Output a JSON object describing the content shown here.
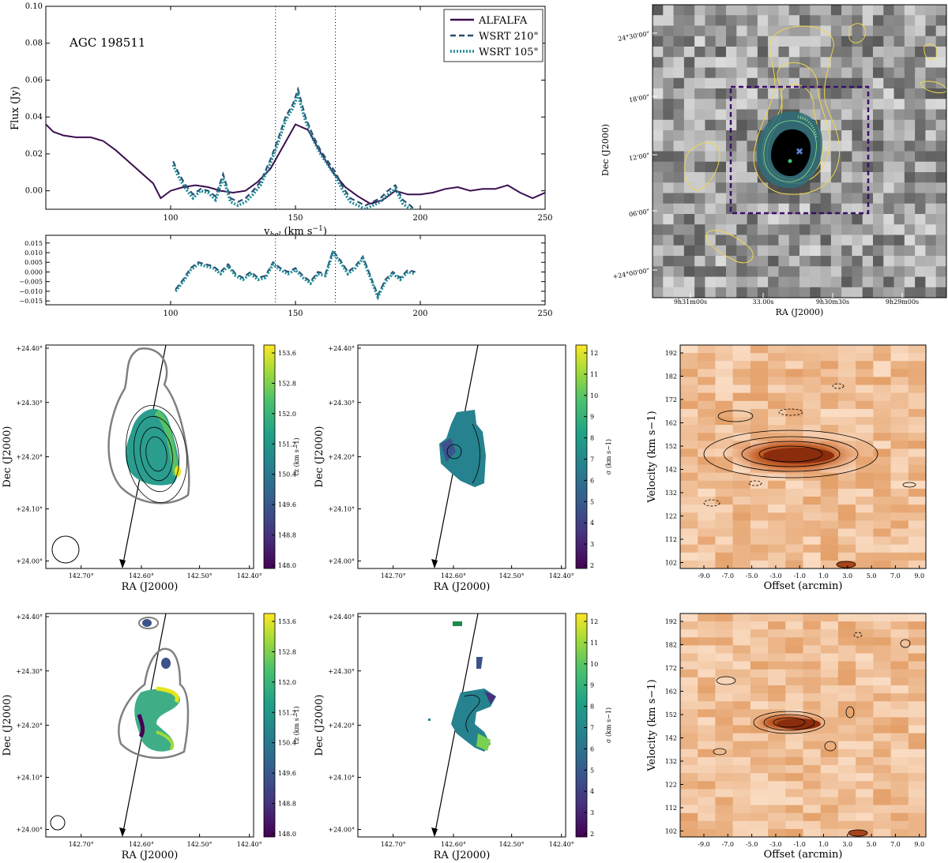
{
  "chart_data": [
    {
      "type": "line",
      "id": "spectrum",
      "annotation": "AGC 198511",
      "xlabel": "v_hel (km s^-1)",
      "xlabel_main": "v",
      "xlabel_sub": "hel",
      "xlabel_unit": "(km s",
      "xlabel_exp": "−1",
      "xlabel_close": ")",
      "ylabel": "Flux (Jy)",
      "xlim": [
        50,
        250
      ],
      "ylim": [
        -0.01,
        0.1
      ],
      "xticks": [
        100,
        150,
        200,
        250
      ],
      "xtick_labels": [
        "100",
        "150",
        "200",
        "250"
      ],
      "yticks": [
        0.0,
        0.02,
        0.04,
        0.06,
        0.08,
        0.1
      ],
      "ytick_labels": [
        "0.00",
        "0.02",
        "0.04",
        "0.06",
        "0.08",
        "0.10"
      ],
      "vlines": [
        142,
        166
      ],
      "legend": [
        "ALFALFA",
        "WSRT 210\"",
        "WSRT 105\""
      ],
      "series": [
        {
          "name": "ALFALFA",
          "color": "#3b0f4f",
          "x": [
            50,
            53,
            57,
            62,
            68,
            73,
            78,
            83,
            88,
            93,
            96,
            100,
            105,
            110,
            115,
            120,
            125,
            130,
            135,
            140,
            145,
            150,
            155,
            160,
            165,
            170,
            175,
            180,
            185,
            190,
            195,
            200,
            205,
            210,
            215,
            220,
            225,
            230,
            235,
            240,
            245,
            250
          ],
          "y": [
            0.036,
            0.032,
            0.03,
            0.029,
            0.029,
            0.027,
            0.022,
            0.016,
            0.01,
            0.004,
            -0.004,
            0.0,
            0.002,
            0.003,
            0.002,
            0.0,
            -0.001,
            0.0,
            0.005,
            0.012,
            0.024,
            0.036,
            0.033,
            0.021,
            0.01,
            0.002,
            -0.003,
            -0.007,
            -0.005,
            0.0,
            -0.002,
            -0.002,
            -0.001,
            0.001,
            0.002,
            0.0,
            0.001,
            0.001,
            0.003,
            -0.001,
            -0.004,
            -0.001
          ]
        },
        {
          "name": "WSRT 210\"",
          "color": "#2a4d6e",
          "x": [
            101,
            103,
            106,
            109,
            112,
            115,
            118,
            121,
            124,
            127,
            130,
            133,
            136,
            140,
            143,
            146,
            149,
            151,
            154,
            157,
            160,
            163,
            166,
            169,
            172,
            175,
            178,
            181,
            184,
            187,
            190,
            193,
            196,
            199
          ],
          "y": [
            0.016,
            0.01,
            0.003,
            -0.002,
            0.001,
            0.0,
            -0.003,
            0.009,
            -0.004,
            -0.006,
            -0.004,
            0.0,
            0.005,
            0.017,
            0.028,
            0.04,
            0.047,
            0.055,
            0.04,
            0.03,
            0.022,
            0.016,
            0.01,
            0.002,
            -0.004,
            -0.006,
            -0.008,
            -0.006,
            -0.004,
            0.0,
            0.003,
            -0.005,
            -0.008,
            -0.012
          ]
        },
        {
          "name": "WSRT 105\"",
          "color": "#1f8a96",
          "x": [
            101,
            103,
            106,
            109,
            112,
            115,
            118,
            121,
            124,
            127,
            130,
            133,
            136,
            140,
            143,
            146,
            149,
            151,
            154,
            157,
            160,
            163,
            166,
            169,
            172,
            175,
            178,
            181,
            184,
            187,
            190,
            193,
            196,
            199
          ],
          "y": [
            0.014,
            0.008,
            0.001,
            -0.004,
            0.0,
            -0.001,
            -0.005,
            0.007,
            -0.006,
            -0.008,
            -0.006,
            -0.002,
            0.003,
            0.015,
            0.026,
            0.038,
            0.045,
            0.052,
            0.038,
            0.028,
            0.02,
            0.014,
            0.008,
            0.0,
            -0.006,
            -0.008,
            -0.01,
            -0.008,
            -0.006,
            -0.002,
            0.001,
            -0.007,
            -0.01,
            -0.014
          ]
        }
      ]
    },
    {
      "type": "line",
      "id": "residual",
      "xlim": [
        50,
        250
      ],
      "ylim": [
        -0.017,
        0.019
      ],
      "xticks": [
        100,
        150,
        200,
        250
      ],
      "xtick_labels": [
        "100",
        "150",
        "200",
        "250"
      ],
      "yticks": [
        0.015,
        0.01,
        0.005,
        0.0,
        -0.005,
        -0.01,
        -0.015
      ],
      "ytick_labels": [
        "0.015",
        "0.010",
        "0.005",
        "0.000",
        "−0.005",
        "−0.010",
        "−0.015"
      ],
      "vlines": [
        142,
        166
      ],
      "series": [
        {
          "name": "WSRT 210\" residual",
          "color": "#2a4d6e",
          "x": [
            102,
            105,
            108,
            111,
            114,
            117,
            120,
            123,
            126,
            129,
            132,
            135,
            138,
            141,
            144,
            147,
            150,
            153,
            156,
            159,
            162,
            165,
            168,
            171,
            174,
            177,
            180,
            183,
            186,
            189,
            192,
            195,
            198
          ],
          "y": [
            -0.009,
            -0.004,
            0.002,
            0.005,
            0.004,
            0.003,
            0.0,
            0.004,
            -0.001,
            -0.003,
            0.0,
            -0.003,
            -0.002,
            0.005,
            0.002,
            0.0,
            0.002,
            -0.002,
            -0.005,
            0.0,
            -0.001,
            0.011,
            0.006,
            0.0,
            0.003,
            0.008,
            -0.002,
            -0.012,
            -0.004,
            0.0,
            -0.003,
            0.001,
            0.0
          ]
        },
        {
          "name": "WSRT 105\" residual",
          "color": "#1f8a96",
          "x": [
            102,
            105,
            108,
            111,
            114,
            117,
            120,
            123,
            126,
            129,
            132,
            135,
            138,
            141,
            144,
            147,
            150,
            153,
            156,
            159,
            162,
            165,
            168,
            171,
            174,
            177,
            180,
            183,
            186,
            189,
            192,
            195,
            198
          ],
          "y": [
            -0.01,
            -0.005,
            0.001,
            0.004,
            0.003,
            0.002,
            -0.001,
            0.003,
            -0.002,
            -0.004,
            -0.001,
            -0.004,
            -0.003,
            0.004,
            0.001,
            -0.001,
            0.001,
            -0.003,
            -0.006,
            -0.001,
            -0.002,
            0.01,
            0.005,
            -0.001,
            0.002,
            0.007,
            -0.003,
            -0.013,
            -0.005,
            -0.001,
            -0.004,
            0.0,
            -0.001
          ]
        }
      ]
    },
    {
      "type": "heatmap",
      "id": "optical-image",
      "xlabel": "RA (J2000)",
      "ylabel": "Dec (J2000)",
      "yticks": [
        "24°30'00\"",
        "18'00\"",
        "12'00\"",
        "06'00\"",
        "+24°00'00\""
      ],
      "xticks": [
        "9h31m00s",
        "33.00s",
        "9h30m30s",
        "9h29m00s"
      ]
    },
    {
      "type": "heatmap",
      "id": "velocity-field-210",
      "xlabel": "RA (J2000)",
      "ylabel": "Dec (J2000)",
      "xticks": [
        "142.70°",
        "142.60°",
        "142.50°",
        "142.40°"
      ],
      "yticks": [
        "+24.40°",
        "+24.30°",
        "+24.20°",
        "+24.10°",
        "+24.00°"
      ],
      "colorbar_label": "cz (km s−1)",
      "colorbar_range": [
        148.0,
        154.4
      ],
      "colorbar_ticks": [
        "153.6",
        "152.8",
        "152.0",
        "151.2",
        "150.4",
        "149.6",
        "148.8",
        "148.0"
      ]
    },
    {
      "type": "heatmap",
      "id": "dispersion-210",
      "xlabel": "RA (J2000)",
      "ylabel": "Dec (J2000)",
      "xticks": [
        "142.70°",
        "142.60°",
        "142.50°",
        "142.40°"
      ],
      "yticks": [
        "+24.40°",
        "+24.30°",
        "+24.20°",
        "+24.10°",
        "+24.00°"
      ],
      "colorbar_label": "σ (km s−1)",
      "colorbar_range": [
        2,
        12
      ],
      "colorbar_ticks": [
        "12",
        "11",
        "10",
        "9",
        "8",
        "7",
        "6",
        "5",
        "4",
        "3",
        "2"
      ]
    },
    {
      "type": "heatmap",
      "id": "pv-diagram-210",
      "xlabel": "Offset (arcmin)",
      "ylabel": "Velocity (km s−1)",
      "xticks": [
        "-9.0",
        "-7.0",
        "-5.0",
        "-3.0",
        "-1.0",
        "1.0",
        "3.0",
        "5.0",
        "7.0",
        "9.0"
      ],
      "yticks": [
        "192",
        "182",
        "172",
        "162",
        "152",
        "142",
        "132",
        "122",
        "112",
        "102"
      ]
    },
    {
      "type": "heatmap",
      "id": "velocity-field-105",
      "xlabel": "RA (J2000)",
      "ylabel": "Dec (J2000)",
      "xticks": [
        "142.70°",
        "142.60°",
        "142.50°",
        "142.40°"
      ],
      "yticks": [
        "+24.40°",
        "+24.30°",
        "+24.20°",
        "+24.10°",
        "+24.00°"
      ],
      "colorbar_label": "cz (km s−1)",
      "colorbar_ticks": [
        "153.6",
        "152.8",
        "152.0",
        "151.2",
        "150.4",
        "149.6",
        "148.8",
        "148.0"
      ]
    },
    {
      "type": "heatmap",
      "id": "dispersion-105",
      "xlabel": "RA (J2000)",
      "ylabel": "Dec (J2000)",
      "xticks": [
        "142.70°",
        "142.60°",
        "142.50°",
        "142.40°"
      ],
      "yticks": [
        "+24.40°",
        "+24.30°",
        "+24.20°",
        "+24.10°",
        "+24.00°"
      ],
      "colorbar_label": "σ (km s−1)",
      "colorbar_ticks": [
        "12",
        "11",
        "10",
        "9",
        "8",
        "7",
        "6",
        "5",
        "4",
        "3",
        "2"
      ]
    },
    {
      "type": "heatmap",
      "id": "pv-diagram-105",
      "xlabel": "Offset (arcmin)",
      "ylabel": "Velocity (km s−1)",
      "xticks": [
        "-9.0",
        "-7.0",
        "-5.0",
        "-3.0",
        "-1.0",
        "1.0",
        "3.0",
        "5.0",
        "7.0",
        "9.0"
      ],
      "yticks": [
        "192",
        "182",
        "172",
        "162",
        "152",
        "142",
        "132",
        "122",
        "112",
        "102"
      ]
    }
  ],
  "colors": {
    "alfalfa": "#3b0f4f",
    "wsrt210": "#2a4d6e",
    "wsrt105": "#1f8a96",
    "box": "#3b0f6e",
    "contour_yellow": "#f0d84a",
    "moment_outline": "#808080",
    "pv_base": "#f7c9a3",
    "pv_core": "#a8441a"
  }
}
